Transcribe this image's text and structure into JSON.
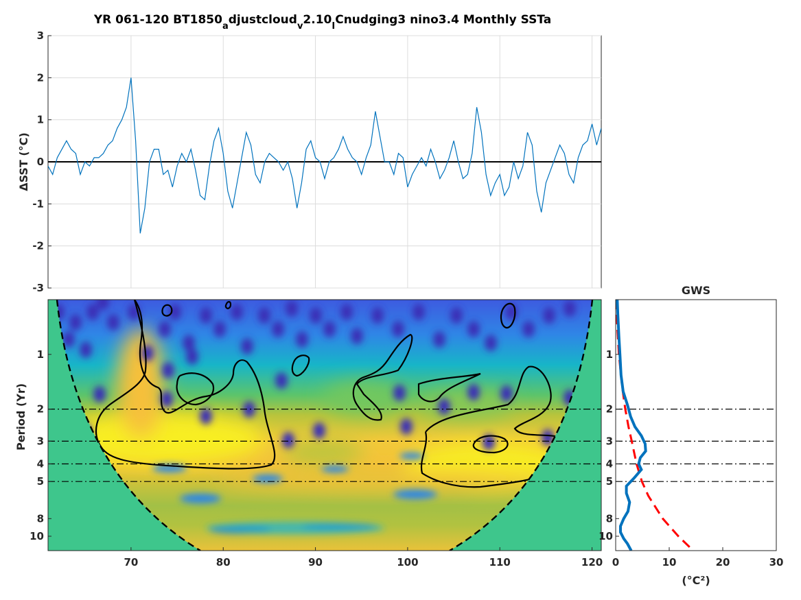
{
  "title": {
    "text": "YR 061-120 BT1850_adjustcloud_v2.10_ICnudging3 nino3.4 Monthly SSTa",
    "parts": [
      {
        "t": "YR 061-120 BT1850",
        "sub": false
      },
      {
        "t": "a",
        "sub": true
      },
      {
        "t": "djustcloud",
        "sub": false
      },
      {
        "t": "v",
        "sub": true
      },
      {
        "t": "2.10",
        "sub": false
      },
      {
        "t": "I",
        "sub": true
      },
      {
        "t": "Cnudging3 nino3.4 Monthly SSTa",
        "sub": false
      }
    ]
  },
  "colors": {
    "series": "#0072bd",
    "zero_line": "#000000",
    "gws": "#0072bd",
    "significance": "#ff0000",
    "coi_fill": "#3ec68c",
    "contour": "#000000",
    "grid": "#dcdcdc"
  },
  "chart_data": [
    {
      "type": "line",
      "name": "time-series",
      "ylabel": "ΔSST (°C)",
      "xlim": [
        61,
        121
      ],
      "ylim": [
        -3,
        3
      ],
      "yticks": [
        "-3",
        "-2",
        "-1",
        "0",
        "1",
        "2",
        "3"
      ],
      "xticks_grid": [
        70,
        80,
        90,
        100,
        110,
        120
      ],
      "grid": true,
      "x": [
        61.0,
        61.5,
        62.0,
        62.5,
        63.0,
        63.5,
        64.0,
        64.5,
        65.0,
        65.5,
        66.0,
        66.5,
        67.0,
        67.5,
        68.0,
        68.5,
        69.0,
        69.5,
        70.0,
        70.5,
        71.0,
        71.5,
        72.0,
        72.5,
        73.0,
        73.5,
        74.0,
        74.5,
        75.0,
        75.5,
        76.0,
        76.5,
        77.0,
        77.5,
        78.0,
        78.5,
        79.0,
        79.5,
        80.0,
        80.5,
        81.0,
        81.5,
        82.0,
        82.5,
        83.0,
        83.5,
        84.0,
        84.5,
        85.0,
        85.5,
        86.0,
        86.5,
        87.0,
        87.5,
        88.0,
        88.5,
        89.0,
        89.5,
        90.0,
        90.5,
        91.0,
        91.5,
        92.0,
        92.5,
        93.0,
        93.5,
        94.0,
        94.5,
        95.0,
        95.5,
        96.0,
        96.5,
        97.0,
        97.5,
        98.0,
        98.5,
        99.0,
        99.5,
        100.0,
        100.5,
        101.0,
        101.5,
        102.0,
        102.5,
        103.0,
        103.5,
        104.0,
        104.5,
        105.0,
        105.5,
        106.0,
        106.5,
        107.0,
        107.5,
        108.0,
        108.5,
        109.0,
        109.5,
        110.0,
        110.5,
        111.0,
        111.5,
        112.0,
        112.5,
        113.0,
        113.5,
        114.0,
        114.5,
        115.0,
        115.5,
        116.0,
        116.5,
        117.0,
        117.5,
        118.0,
        118.5,
        119.0,
        119.5,
        120.0,
        120.5,
        121.0
      ],
      "y": [
        -0.1,
        -0.3,
        0.1,
        0.3,
        0.5,
        0.3,
        0.2,
        -0.3,
        0.0,
        -0.1,
        0.1,
        0.1,
        0.2,
        0.4,
        0.5,
        0.8,
        1.0,
        1.3,
        2.0,
        0.5,
        -1.7,
        -1.1,
        0.0,
        0.3,
        0.3,
        -0.3,
        -0.2,
        -0.6,
        -0.1,
        0.2,
        0.0,
        0.3,
        -0.2,
        -0.8,
        -0.9,
        -0.1,
        0.5,
        0.8,
        0.2,
        -0.7,
        -1.1,
        -0.5,
        0.1,
        0.7,
        0.4,
        -0.3,
        -0.5,
        0.0,
        0.2,
        0.1,
        0.0,
        -0.2,
        0.0,
        -0.4,
        -1.1,
        -0.5,
        0.3,
        0.5,
        0.1,
        0.0,
        -0.4,
        0.0,
        0.1,
        0.3,
        0.6,
        0.3,
        0.1,
        0.0,
        -0.3,
        0.1,
        0.4,
        1.2,
        0.6,
        0.0,
        0.0,
        -0.3,
        0.2,
        0.1,
        -0.6,
        -0.3,
        -0.1,
        0.1,
        -0.1,
        0.3,
        0.0,
        -0.4,
        -0.2,
        0.1,
        0.5,
        0.0,
        -0.4,
        -0.3,
        0.2,
        1.3,
        0.7,
        -0.3,
        -0.8,
        -0.5,
        -0.3,
        -0.8,
        -0.6,
        0.0,
        -0.4,
        -0.1,
        0.7,
        0.4,
        -0.7,
        -1.2,
        -0.5,
        -0.2,
        0.1,
        0.4,
        0.2,
        -0.3,
        -0.5,
        0.1,
        0.4,
        0.5,
        0.9,
        0.4,
        0.8
      ]
    },
    {
      "type": "heatmap",
      "name": "wavelet-power-spectrum",
      "ylabel": "Period (Yr)",
      "xlim": [
        61,
        121
      ],
      "ylim_period": [
        0.5,
        12
      ],
      "yscale": "log",
      "xticks": [
        "70",
        "80",
        "90",
        "100",
        "110",
        "120"
      ],
      "yticks": [
        "1",
        "2",
        "3",
        "4",
        "5",
        "8",
        "10"
      ],
      "reference_periods": [
        2,
        3,
        4,
        5
      ],
      "cone_of_influence": "dashed black curve, outside region filled",
      "contours": "black 95% significance contours",
      "colormap": "parula"
    },
    {
      "type": "line",
      "name": "global-wavelet-spectrum",
      "title": "GWS",
      "xlabel": "(°C²)",
      "xlim": [
        0,
        30
      ],
      "xticks": [
        "0",
        "10",
        "20",
        "30"
      ],
      "yticks": [
        "1",
        "2",
        "3",
        "4",
        "5",
        "8",
        "10"
      ],
      "yscale": "log",
      "series": [
        {
          "style": "solid blue",
          "period": [
            0.5,
            0.6,
            0.8,
            1.0,
            1.3,
            1.6,
            1.9,
            2.2,
            2.5,
            2.8,
            3.1,
            3.4,
            3.7,
            4.0,
            4.3,
            4.8,
            5.3,
            5.8,
            6.5,
            7.3,
            8.0,
            8.8,
            9.5,
            10.3,
            11.0,
            12.0
          ],
          "power": [
            0.3,
            0.4,
            0.6,
            0.8,
            1.0,
            1.4,
            2.2,
            2.8,
            3.6,
            4.8,
            5.5,
            5.6,
            4.6,
            4.3,
            4.8,
            3.4,
            2.0,
            2.0,
            2.6,
            2.3,
            1.5,
            0.9,
            0.9,
            1.5,
            2.2,
            2.9
          ]
        },
        {
          "style": "dashed red",
          "period": [
            0.5,
            0.7,
            1.0,
            1.5,
            2.0,
            2.5,
            3.0,
            4.0,
            5.0,
            6.0,
            8.0,
            10.0,
            12.0
          ],
          "power": [
            0.1,
            0.3,
            0.6,
            1.2,
            1.8,
            2.4,
            3.0,
            3.9,
            4.9,
            6.1,
            8.8,
            11.7,
            14.5
          ]
        }
      ]
    }
  ]
}
